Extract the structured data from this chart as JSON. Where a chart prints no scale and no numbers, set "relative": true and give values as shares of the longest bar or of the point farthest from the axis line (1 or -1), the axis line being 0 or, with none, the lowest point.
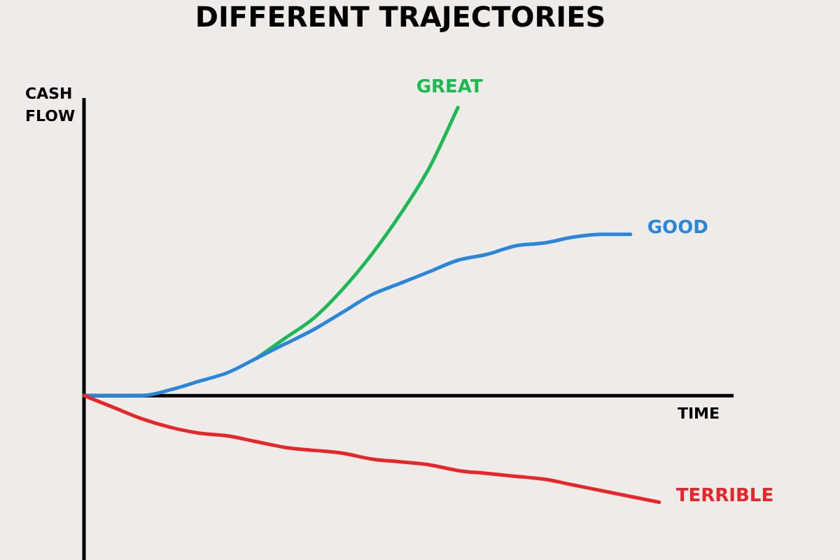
{
  "chart_data": {
    "type": "line",
    "title": "DIFFERENT TRAJECTORIES",
    "xlabel": "TIME",
    "ylabel": "CASH FLOW",
    "relative": true,
    "legend": false,
    "marker": "none",
    "line_style": "solid",
    "tick_labels": false,
    "categories": [
      null,
      null,
      null,
      null,
      null,
      null,
      null,
      null,
      null,
      null,
      null,
      null,
      null,
      null,
      null,
      null,
      null,
      null,
      null,
      null,
      null,
      null,
      null
    ],
    "series": [
      {
        "name": "GREAT",
        "color": "#1db954",
        "values": [
          null,
          null,
          null,
          null,
          null,
          null,
          0.13,
          0.2,
          0.27,
          0.37,
          0.49,
          0.63,
          0.79,
          1.0,
          null,
          null,
          null,
          null,
          null,
          null,
          null,
          null,
          null
        ]
      },
      {
        "name": "GOOD",
        "color": "#2a86d9",
        "values": [
          0,
          0,
          0,
          0.02,
          0.05,
          0.08,
          0.13,
          0.18,
          0.23,
          0.29,
          0.35,
          0.39,
          0.43,
          0.47,
          0.49,
          0.52,
          0.53,
          0.55,
          0.56,
          0.56,
          null,
          null,
          null
        ]
      },
      {
        "name": "TERRIBLE",
        "color": "#e8262a",
        "values": [
          0,
          -0.04,
          -0.08,
          -0.11,
          -0.13,
          -0.14,
          -0.16,
          -0.18,
          -0.19,
          -0.2,
          -0.22,
          -0.23,
          -0.24,
          -0.26,
          -0.27,
          -0.28,
          -0.29,
          -0.31,
          -0.33,
          -0.35,
          -0.37,
          null,
          null
        ]
      }
    ]
  }
}
